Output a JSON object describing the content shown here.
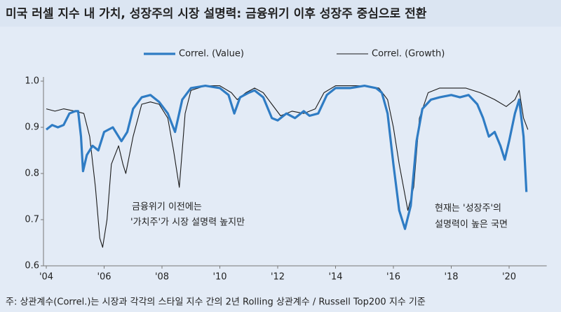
{
  "chart_data": {
    "type": "line",
    "title": "미국 러셀 지수 내 가치, 성장주의 시장 설명력: 금융위기 이후 성장주 중심으로 전환",
    "annotations": [
      "금융위기 이전에는",
      "'가치주'가 시장 설명력 높지만",
      "현재는 '성장주'의",
      "설명력이 높은 국면"
    ],
    "footnote": "주: 상관계수(Correl.)는 시장과 각각의 스타일 지수 간의 2년 Rolling 상관계수 / Russell Top200 지수 기준",
    "xlim": [
      2004,
      2021.3
    ],
    "xticks": [
      {
        "value": 2004,
        "label": "'04"
      },
      {
        "value": 2006,
        "label": "'06"
      },
      {
        "value": 2008,
        "label": "'08"
      },
      {
        "value": 2010,
        "label": "'10"
      },
      {
        "value": 2012,
        "label": "'12"
      },
      {
        "value": 2014,
        "label": "'14"
      },
      {
        "value": 2016,
        "label": "'16"
      },
      {
        "value": 2018,
        "label": "'18"
      },
      {
        "value": 2020,
        "label": "'20"
      }
    ],
    "ylim": [
      0.6,
      1.0
    ],
    "yticks": [
      0.6,
      0.7,
      0.8,
      0.9,
      {
        "value": 1,
        "label": "1.0"
      }
    ],
    "grid": false,
    "series": [
      {
        "name": "Correl. (Value)",
        "color": "#2f7cc4",
        "width": 3.2,
        "x": [
          2004.0,
          2004.2,
          2004.4,
          2004.6,
          2004.8,
          2005.0,
          2005.1,
          2005.2,
          2005.27,
          2005.4,
          2005.6,
          2005.8,
          2006.0,
          2006.3,
          2006.6,
          2006.8,
          2007.0,
          2007.3,
          2007.6,
          2007.9,
          2008.2,
          2008.45,
          2008.7,
          2009.0,
          2009.5,
          2010.0,
          2010.3,
          2010.5,
          2010.7,
          2011.0,
          2011.2,
          2011.5,
          2011.8,
          2012.0,
          2012.3,
          2012.6,
          2012.9,
          2013.1,
          2013.4,
          2013.7,
          2014.0,
          2014.5,
          2015.0,
          2015.4,
          2015.6,
          2015.8,
          2016.0,
          2016.2,
          2016.4,
          2016.6,
          2016.8,
          2017.0,
          2017.3,
          2017.6,
          2018.0,
          2018.3,
          2018.6,
          2018.9,
          2019.1,
          2019.3,
          2019.5,
          2019.7,
          2019.85,
          2020.0,
          2020.2,
          2020.35,
          2020.5,
          2020.6
        ],
        "values": [
          0.895,
          0.905,
          0.9,
          0.905,
          0.93,
          0.935,
          0.935,
          0.88,
          0.805,
          0.84,
          0.86,
          0.85,
          0.89,
          0.9,
          0.87,
          0.89,
          0.94,
          0.965,
          0.97,
          0.955,
          0.93,
          0.89,
          0.96,
          0.985,
          0.99,
          0.985,
          0.97,
          0.93,
          0.965,
          0.975,
          0.98,
          0.965,
          0.92,
          0.915,
          0.93,
          0.92,
          0.935,
          0.925,
          0.93,
          0.97,
          0.985,
          0.985,
          0.99,
          0.985,
          0.975,
          0.93,
          0.82,
          0.72,
          0.68,
          0.73,
          0.87,
          0.94,
          0.96,
          0.965,
          0.97,
          0.965,
          0.97,
          0.95,
          0.92,
          0.88,
          0.89,
          0.86,
          0.83,
          0.87,
          0.93,
          0.96,
          0.88,
          0.76
        ]
      },
      {
        "name": "Correl. (Growth)",
        "color": "#1a1a1a",
        "width": 1.1,
        "x": [
          2004.0,
          2004.3,
          2004.6,
          2005.0,
          2005.3,
          2005.5,
          2005.7,
          2005.85,
          2005.95,
          2006.1,
          2006.25,
          2006.5,
          2006.65,
          2006.75,
          2007.0,
          2007.3,
          2007.6,
          2007.9,
          2008.2,
          2008.4,
          2008.6,
          2008.8,
          2009.0,
          2009.5,
          2010.0,
          2010.4,
          2010.6,
          2010.9,
          2011.2,
          2011.5,
          2011.8,
          2012.1,
          2012.5,
          2012.9,
          2013.3,
          2013.6,
          2014.0,
          2015.0,
          2015.5,
          2015.8,
          2016.0,
          2016.2,
          2016.5,
          2016.7,
          2016.9,
          2017.2,
          2017.6,
          2018.0,
          2018.5,
          2019.0,
          2019.5,
          2019.9,
          2020.2,
          2020.35,
          2020.5,
          2020.65
        ],
        "values": [
          0.94,
          0.935,
          0.94,
          0.935,
          0.93,
          0.88,
          0.77,
          0.66,
          0.64,
          0.7,
          0.82,
          0.86,
          0.82,
          0.8,
          0.88,
          0.95,
          0.955,
          0.95,
          0.92,
          0.85,
          0.77,
          0.93,
          0.98,
          0.99,
          0.99,
          0.975,
          0.96,
          0.975,
          0.985,
          0.975,
          0.95,
          0.925,
          0.935,
          0.93,
          0.94,
          0.975,
          0.99,
          0.99,
          0.985,
          0.96,
          0.9,
          0.82,
          0.72,
          0.77,
          0.92,
          0.975,
          0.985,
          0.985,
          0.985,
          0.975,
          0.96,
          0.945,
          0.96,
          0.98,
          0.92,
          0.895
        ]
      }
    ]
  }
}
